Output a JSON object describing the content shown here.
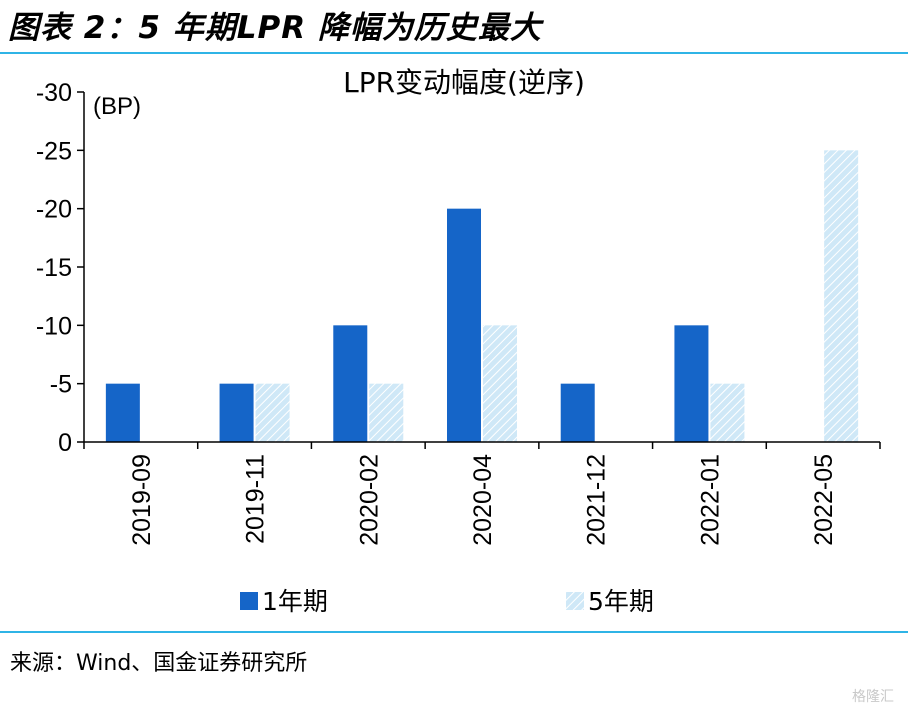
{
  "figure_title": "图表 2：5 年期LPR 降幅为历史最大",
  "source": "来源：Wind、国金证券研究所",
  "watermark": "格隆汇",
  "colors": {
    "accent_rule": "#2fb4e6",
    "series_1": "#1565c8",
    "series_2_fill": "#cfe8f7",
    "series_2_hatch": "#ffffff",
    "axis": "#000000"
  },
  "chart_data": {
    "type": "bar",
    "title": "LPR变动幅度(逆序)",
    "unit_label": "(BP)",
    "categories": [
      "2019-09",
      "2019-11",
      "2020-02",
      "2020-04",
      "2021-12",
      "2022-01",
      "2022-05"
    ],
    "series": [
      {
        "name": "1年期",
        "values": [
          -5,
          -5,
          -10,
          -20,
          -5,
          -10,
          0
        ]
      },
      {
        "name": "5年期",
        "values": [
          0,
          -5,
          -5,
          -10,
          0,
          -5,
          -25
        ]
      }
    ],
    "ylim": [
      -30,
      0
    ],
    "y_reversed": true,
    "yticks": [
      -30,
      -25,
      -20,
      -15,
      -10,
      -5,
      0
    ],
    "xtick_rotation": -90,
    "legend_position": "bottom",
    "grid": false
  }
}
